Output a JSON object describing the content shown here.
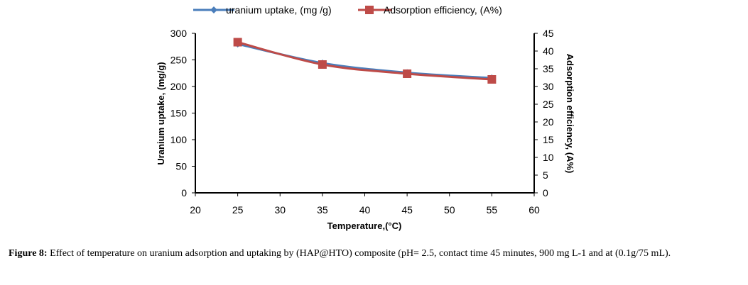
{
  "chart_data": {
    "type": "line",
    "x": [
      25,
      35,
      45,
      55
    ],
    "series": [
      {
        "name": "uranium uptake, (mg /g)",
        "axis": "left",
        "values": [
          280,
          244,
          226,
          216
        ],
        "color": "#4a7ebb",
        "marker": "diamond"
      },
      {
        "name": "Adsorption efficiency, (A%)",
        "axis": "right",
        "values": [
          42.5,
          36.2,
          33.6,
          32.0
        ],
        "color": "#be4b48",
        "marker": "square"
      }
    ],
    "xlabel": "Temperature,(°C)",
    "ylabel": "Uranium uptake, (mg/g)",
    "y2label": "Adsorption efficiency, (A%)",
    "xlim": [
      20,
      60
    ],
    "ylim": [
      0,
      300
    ],
    "y2lim": [
      0,
      45
    ],
    "x_ticks": [
      "20",
      "25",
      "30",
      "35",
      "40",
      "45",
      "50",
      "55",
      "60"
    ],
    "y_ticks": [
      "0",
      "50",
      "100",
      "150",
      "200",
      "250",
      "300"
    ],
    "y2_ticks": [
      "0",
      "5",
      "10",
      "15",
      "20",
      "25",
      "30",
      "35",
      "40",
      "45"
    ],
    "legend_position": "top",
    "grid": false
  },
  "caption": {
    "label": "Figure 8:",
    "text": " Effect of temperature on uranium adsorption and uptaking by (HAP@HTO) composite (pH= 2.5, contact time 45 minutes, 900 mg L-1 and at (0.1g/75 mL)."
  }
}
